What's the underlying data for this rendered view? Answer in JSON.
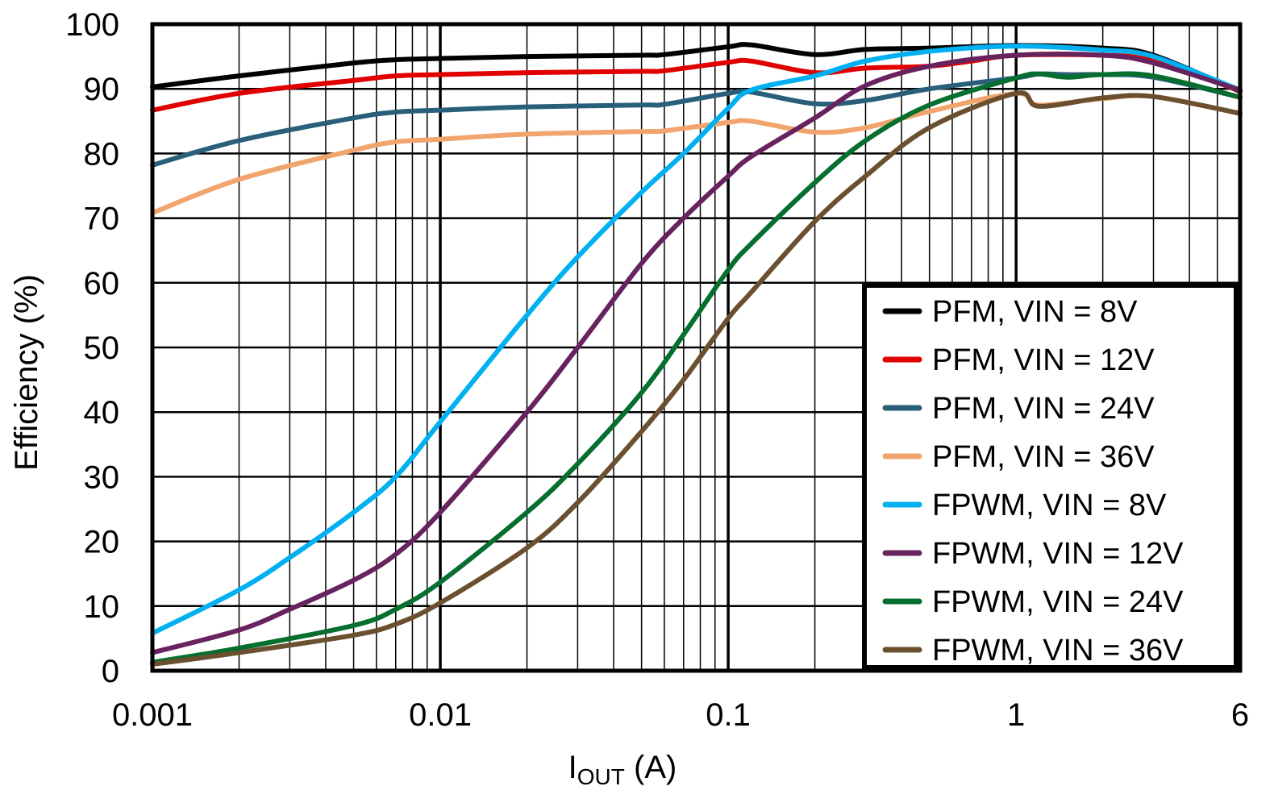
{
  "chart_data": {
    "type": "line",
    "title": "",
    "xlabel_main": "I",
    "xlabel_sub": "OUT",
    "xlabel_unit": " (A)",
    "ylabel": "Efficiency (%)",
    "x_scale": "log",
    "xlim": [
      0.001,
      6
    ],
    "ylim": [
      0,
      100
    ],
    "x_ticks": [
      {
        "v": 0.001,
        "label": "0.001"
      },
      {
        "v": 0.01,
        "label": "0.01"
      },
      {
        "v": 0.1,
        "label": "0.1"
      },
      {
        "v": 1,
        "label": "1"
      },
      {
        "v": 6,
        "label": "6"
      }
    ],
    "y_ticks": [
      {
        "v": 0,
        "label": "0"
      },
      {
        "v": 10,
        "label": "10"
      },
      {
        "v": 20,
        "label": "20"
      },
      {
        "v": 30,
        "label": "30"
      },
      {
        "v": 40,
        "label": "40"
      },
      {
        "v": 50,
        "label": "50"
      },
      {
        "v": 60,
        "label": "60"
      },
      {
        "v": 70,
        "label": "70"
      },
      {
        "v": 80,
        "label": "80"
      },
      {
        "v": 90,
        "label": "90"
      },
      {
        "v": 100,
        "label": "100"
      }
    ],
    "grid": true,
    "legend_placement": "bottom-right",
    "series": [
      {
        "name": "PFM, VIN = 8V",
        "color": "#000000",
        "x": [
          0.001,
          0.002,
          0.005,
          0.007,
          0.01,
          0.02,
          0.05,
          0.06,
          0.1,
          0.12,
          0.2,
          0.3,
          0.5,
          1,
          2,
          3,
          6
        ],
        "y": [
          90.3,
          92,
          94,
          94.5,
          94.7,
          95,
          95.2,
          95.3,
          96.5,
          96.8,
          95.3,
          96.1,
          96.3,
          96.7,
          96.3,
          95.2,
          89.6
        ]
      },
      {
        "name": "PFM, VIN = 12V",
        "color": "#e00000",
        "x": [
          0.001,
          0.002,
          0.005,
          0.007,
          0.01,
          0.02,
          0.05,
          0.06,
          0.1,
          0.12,
          0.2,
          0.3,
          0.5,
          0.7,
          1,
          2,
          3,
          6
        ],
        "y": [
          86.7,
          89.3,
          91.3,
          92,
          92.2,
          92.5,
          92.7,
          92.8,
          94.1,
          94.3,
          92.5,
          93.2,
          93.5,
          94.3,
          95.2,
          95.2,
          94.3,
          89.7
        ]
      },
      {
        "name": "PFM, VIN = 24V",
        "color": "#2a5f7a",
        "x": [
          0.001,
          0.002,
          0.005,
          0.007,
          0.01,
          0.02,
          0.05,
          0.06,
          0.1,
          0.12,
          0.2,
          0.3,
          0.5,
          1,
          1.2,
          1.5,
          2,
          3,
          6
        ],
        "y": [
          78.2,
          82,
          85.5,
          86.4,
          86.7,
          87.2,
          87.5,
          87.6,
          89.3,
          89.5,
          87.7,
          88.2,
          90,
          91.7,
          92.3,
          92.2,
          92.2,
          91.8,
          88.7
        ]
      },
      {
        "name": "PFM, VIN = 36V",
        "color": "#f2a46d",
        "x": [
          0.001,
          0.002,
          0.005,
          0.007,
          0.01,
          0.02,
          0.05,
          0.06,
          0.1,
          0.12,
          0.2,
          0.3,
          0.5,
          1,
          1.2,
          2,
          3,
          6
        ],
        "y": [
          70.8,
          76,
          80.5,
          81.8,
          82.2,
          83,
          83.4,
          83.5,
          84.8,
          85,
          83.3,
          84,
          86.5,
          89.3,
          87.5,
          88.5,
          88.8,
          86.2
        ]
      },
      {
        "name": "FPWM, VIN = 8V",
        "color": "#00b0f0",
        "x": [
          0.001,
          0.002,
          0.003,
          0.005,
          0.007,
          0.01,
          0.02,
          0.03,
          0.05,
          0.07,
          0.1,
          0.12,
          0.2,
          0.3,
          0.5,
          1,
          2,
          3,
          6
        ],
        "y": [
          5.8,
          12.5,
          17.5,
          24.5,
          30,
          38.5,
          55,
          64,
          74,
          80,
          87,
          89.8,
          92,
          94.3,
          95.8,
          96.6,
          96,
          95,
          89.8
        ]
      },
      {
        "name": "FPWM, VIN = 12V",
        "color": "#68235e",
        "x": [
          0.001,
          0.002,
          0.003,
          0.005,
          0.007,
          0.01,
          0.02,
          0.03,
          0.05,
          0.07,
          0.1,
          0.12,
          0.2,
          0.3,
          0.5,
          1,
          2,
          3,
          6
        ],
        "y": [
          2.8,
          6.3,
          9.5,
          14,
          18,
          24.5,
          40,
          50,
          63,
          70,
          76.5,
          79.5,
          85.5,
          90.5,
          93.5,
          95.2,
          95.2,
          94,
          89.8
        ]
      },
      {
        "name": "FPWM, VIN = 24V",
        "color": "#066e2e",
        "x": [
          0.001,
          0.002,
          0.005,
          0.007,
          0.01,
          0.02,
          0.03,
          0.05,
          0.07,
          0.1,
          0.12,
          0.2,
          0.3,
          0.5,
          1,
          1.2,
          1.5,
          2,
          3,
          6
        ],
        "y": [
          1.3,
          3.5,
          7,
          9.5,
          13.7,
          24.5,
          32,
          43,
          52,
          62,
          66,
          75.5,
          82,
          87.5,
          91.7,
          92.3,
          91.8,
          92.2,
          92,
          88.7
        ]
      },
      {
        "name": "FPWM, VIN = 36V",
        "color": "#6b5030",
        "x": [
          0.001,
          0.002,
          0.005,
          0.007,
          0.01,
          0.02,
          0.03,
          0.05,
          0.07,
          0.1,
          0.12,
          0.2,
          0.3,
          0.5,
          1,
          1.2,
          2,
          3,
          6
        ],
        "y": [
          1,
          2.8,
          5.5,
          7.2,
          10.5,
          19,
          26,
          37,
          45,
          54.5,
          58.5,
          69.5,
          76.5,
          84,
          89.3,
          87.3,
          88.6,
          88.8,
          86.2
        ]
      }
    ]
  }
}
